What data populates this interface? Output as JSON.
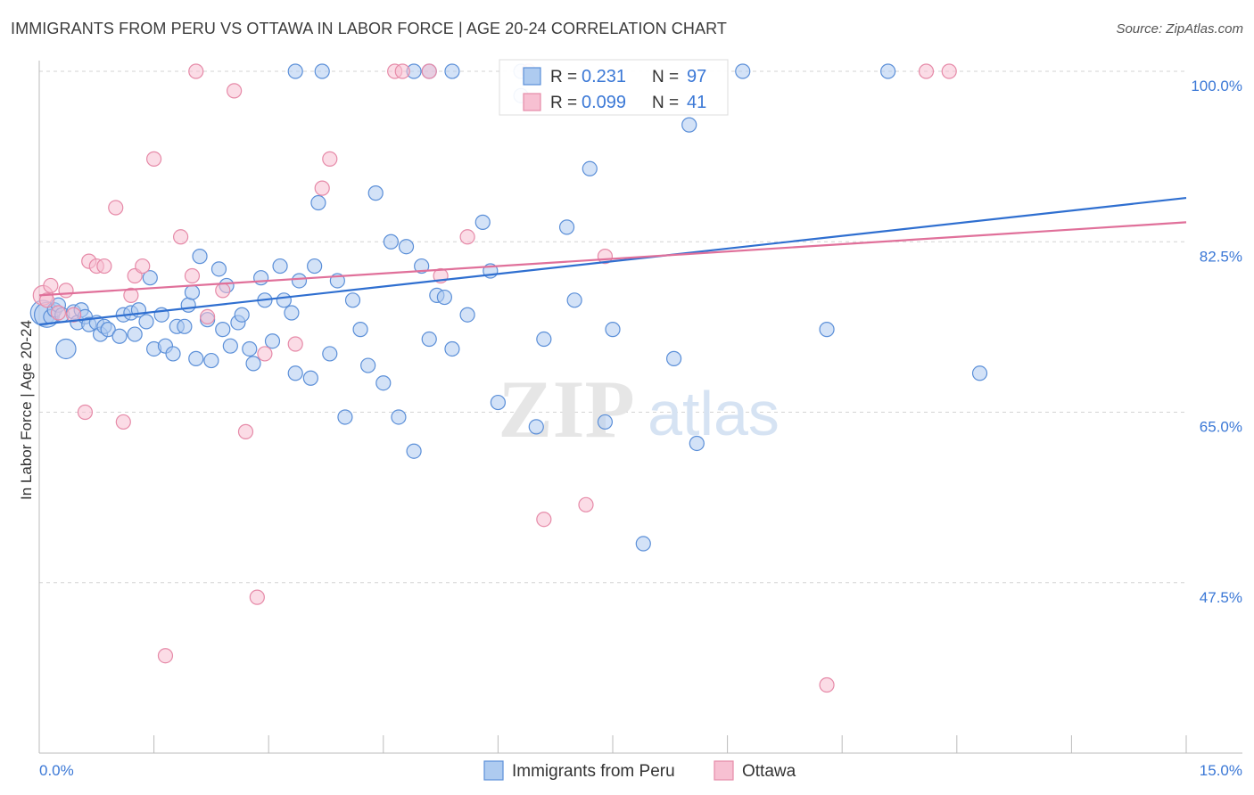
{
  "title": "IMMIGRANTS FROM PERU VS OTTAWA IN LABOR FORCE | AGE 20-24 CORRELATION CHART",
  "source": "Source: ZipAtlas.com",
  "watermark": {
    "zip": "ZIP",
    "atlas": "atlas"
  },
  "chart_data": {
    "type": "scatter",
    "xlabel": "",
    "ylabel": "In Labor Force | Age 20-24",
    "xlim": [
      0,
      15
    ],
    "ylim": [
      30,
      100
    ],
    "x_tick_labels": [
      "0.0%",
      "15.0%"
    ],
    "y_ticks": [
      47.5,
      65.0,
      82.5,
      100.0
    ],
    "y_tick_labels": [
      "47.5%",
      "65.0%",
      "82.5%",
      "100.0%"
    ],
    "grid": "horizontal-dashed",
    "legend_position": "top-center",
    "colors": {
      "peru_fill": "#aecbf0",
      "peru_stroke": "#5b8fd8",
      "peru_line": "#2f6fd0",
      "ottawa_fill": "#f7c0d2",
      "ottawa_stroke": "#e68aa8",
      "ottawa_line": "#e0709a",
      "tick_text": "#3b78d6",
      "grid": "#d3d3d3"
    },
    "stats": [
      {
        "r_label": "R =",
        "r_value": "0.231",
        "n_label": "N =",
        "n_value": "97"
      },
      {
        "r_label": "R =",
        "r_value": "0.099",
        "n_label": "N =",
        "n_value": "41"
      }
    ],
    "series": [
      {
        "name": "Immigrants from Peru",
        "trend": {
          "x": [
            0,
            15
          ],
          "y": [
            74.0,
            87.0
          ]
        },
        "points": [
          [
            0.05,
            75.2,
            2
          ],
          [
            0.1,
            75.0,
            2
          ],
          [
            0.15,
            74.8,
            1
          ],
          [
            0.2,
            75.5,
            1
          ],
          [
            0.25,
            76.0,
            1
          ],
          [
            0.3,
            75.0,
            1
          ],
          [
            0.35,
            71.5,
            1.5
          ],
          [
            0.45,
            75.3,
            1
          ],
          [
            0.5,
            74.2,
            1
          ],
          [
            0.55,
            75.5,
            1
          ],
          [
            0.6,
            74.8,
            1
          ],
          [
            0.65,
            74.0,
            1
          ],
          [
            0.75,
            74.2,
            1
          ],
          [
            0.8,
            73.0,
            1
          ],
          [
            0.85,
            73.8,
            1
          ],
          [
            0.9,
            73.5,
            1
          ],
          [
            1.05,
            72.8,
            1
          ],
          [
            1.1,
            75.0,
            1
          ],
          [
            1.2,
            75.2,
            1
          ],
          [
            1.25,
            73.0,
            1
          ],
          [
            1.3,
            75.5,
            1
          ],
          [
            1.4,
            74.3,
            1
          ],
          [
            1.45,
            78.8,
            1
          ],
          [
            1.5,
            71.5,
            1
          ],
          [
            1.6,
            75.0,
            1
          ],
          [
            1.65,
            71.8,
            1
          ],
          [
            1.75,
            71.0,
            1
          ],
          [
            1.8,
            73.8,
            1
          ],
          [
            1.9,
            73.8,
            1
          ],
          [
            1.95,
            76.0,
            1
          ],
          [
            2.0,
            77.3,
            1
          ],
          [
            2.05,
            70.5,
            1
          ],
          [
            2.1,
            81.0,
            1
          ],
          [
            2.2,
            74.5,
            1
          ],
          [
            2.25,
            70.3,
            1
          ],
          [
            2.35,
            79.7,
            1
          ],
          [
            2.4,
            73.5,
            1
          ],
          [
            2.45,
            78.0,
            1
          ],
          [
            2.5,
            71.8,
            1
          ],
          [
            2.6,
            74.2,
            1
          ],
          [
            2.65,
            75.0,
            1
          ],
          [
            2.75,
            71.5,
            1
          ],
          [
            2.8,
            70.0,
            1
          ],
          [
            2.9,
            78.8,
            1
          ],
          [
            2.95,
            76.5,
            1
          ],
          [
            3.05,
            72.3,
            1
          ],
          [
            3.15,
            80.0,
            1
          ],
          [
            3.2,
            76.5,
            1
          ],
          [
            3.3,
            75.2,
            1
          ],
          [
            3.35,
            69.0,
            1
          ],
          [
            3.4,
            78.5,
            1
          ],
          [
            3.55,
            68.5,
            1
          ],
          [
            3.6,
            80.0,
            1
          ],
          [
            3.65,
            86.5,
            1
          ],
          [
            3.8,
            71.0,
            1
          ],
          [
            3.9,
            78.5,
            1
          ],
          [
            4.0,
            64.5,
            1
          ],
          [
            4.1,
            76.5,
            1
          ],
          [
            4.2,
            73.5,
            1
          ],
          [
            4.3,
            69.8,
            1
          ],
          [
            4.4,
            87.5,
            1
          ],
          [
            4.5,
            68.0,
            1
          ],
          [
            4.6,
            82.5,
            1
          ],
          [
            4.7,
            64.5,
            1
          ],
          [
            4.8,
            82.0,
            1
          ],
          [
            4.9,
            61.0,
            1
          ],
          [
            5.0,
            80.0,
            1
          ],
          [
            5.1,
            72.5,
            1
          ],
          [
            5.2,
            77.0,
            1
          ],
          [
            5.3,
            76.8,
            1
          ],
          [
            5.4,
            71.5,
            1
          ],
          [
            5.6,
            75.0,
            1
          ],
          [
            5.8,
            84.5,
            1
          ],
          [
            5.9,
            79.5,
            1
          ],
          [
            6.0,
            66.0,
            1
          ],
          [
            6.3,
            97.5,
            1
          ],
          [
            6.5,
            63.5,
            1
          ],
          [
            6.6,
            72.5,
            1
          ],
          [
            6.9,
            84.0,
            1
          ],
          [
            7.0,
            76.5,
            1
          ],
          [
            7.2,
            90.0,
            1
          ],
          [
            7.4,
            64.0,
            1
          ],
          [
            7.5,
            73.5,
            1
          ],
          [
            7.9,
            51.5,
            1
          ],
          [
            8.3,
            70.5,
            1
          ],
          [
            8.5,
            94.5,
            1
          ],
          [
            8.6,
            61.8,
            1
          ],
          [
            10.3,
            73.5,
            1
          ],
          [
            12.3,
            69.0,
            1
          ],
          [
            3.35,
            100.0,
            1
          ],
          [
            3.7,
            100.0,
            1
          ],
          [
            4.9,
            100.0,
            1
          ],
          [
            5.1,
            100.0,
            1
          ],
          [
            5.4,
            100.0,
            1
          ],
          [
            6.3,
            100.0,
            1
          ],
          [
            9.2,
            100.0,
            1
          ],
          [
            11.1,
            100.0,
            1
          ]
        ]
      },
      {
        "name": "Ottawa",
        "trend": {
          "x": [
            0,
            15
          ],
          "y": [
            77.0,
            84.5
          ]
        },
        "points": [
          [
            0.05,
            77.0,
            1.5
          ],
          [
            0.1,
            76.5,
            1
          ],
          [
            0.15,
            78.0,
            1
          ],
          [
            0.25,
            75.2,
            1
          ],
          [
            0.35,
            77.5,
            1
          ],
          [
            0.45,
            75.0,
            1
          ],
          [
            0.6,
            65.0,
            1
          ],
          [
            0.65,
            80.5,
            1
          ],
          [
            0.75,
            80.0,
            1
          ],
          [
            0.85,
            80.0,
            1
          ],
          [
            1.0,
            86.0,
            1
          ],
          [
            1.1,
            64.0,
            1
          ],
          [
            1.2,
            77.0,
            1
          ],
          [
            1.25,
            79.0,
            1
          ],
          [
            1.35,
            80.0,
            1
          ],
          [
            1.5,
            91.0,
            1
          ],
          [
            1.65,
            40.0,
            1
          ],
          [
            1.85,
            83.0,
            1
          ],
          [
            2.0,
            79.0,
            1
          ],
          [
            2.05,
            100.0,
            1
          ],
          [
            2.2,
            74.8,
            1
          ],
          [
            2.4,
            77.5,
            1
          ],
          [
            2.55,
            98.0,
            1
          ],
          [
            2.7,
            63.0,
            1
          ],
          [
            2.85,
            46.0,
            1
          ],
          [
            2.95,
            71.0,
            1
          ],
          [
            3.35,
            72.0,
            1
          ],
          [
            3.7,
            88.0,
            1
          ],
          [
            3.8,
            91.0,
            1
          ],
          [
            4.65,
            100.0,
            1
          ],
          [
            4.75,
            100.0,
            1
          ],
          [
            5.1,
            100.0,
            1
          ],
          [
            5.25,
            79.0,
            1
          ],
          [
            5.6,
            83.0,
            1
          ],
          [
            6.4,
            100.0,
            1
          ],
          [
            6.6,
            54.0,
            1
          ],
          [
            7.15,
            55.5,
            1
          ],
          [
            7.4,
            81.0,
            1
          ],
          [
            10.3,
            37.0,
            1
          ],
          [
            11.6,
            100.0,
            1
          ],
          [
            11.9,
            100.0,
            1
          ]
        ]
      }
    ]
  }
}
